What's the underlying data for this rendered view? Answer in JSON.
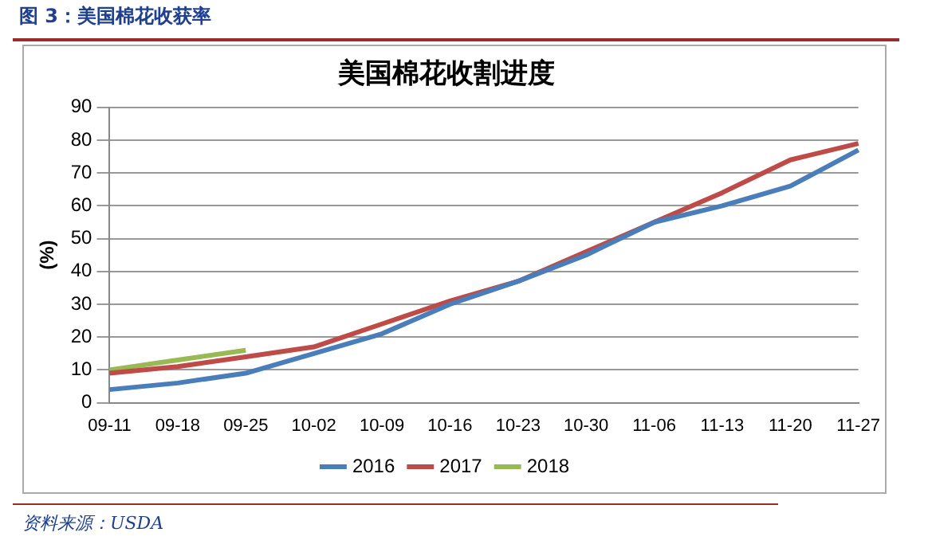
{
  "chart_data": {
    "type": "line",
    "title": "美国棉花收割进度",
    "ylabel": "(%)",
    "categories": [
      "09-11",
      "09-18",
      "09-25",
      "10-02",
      "10-09",
      "10-16",
      "10-23",
      "10-30",
      "11-06",
      "11-13",
      "11-20",
      "11-27"
    ],
    "series": [
      {
        "name": "2016",
        "color": "#4a7ebb",
        "values": [
          4,
          6,
          9,
          15,
          21,
          30,
          37,
          45,
          55,
          60,
          66,
          77
        ]
      },
      {
        "name": "2017",
        "color": "#be4b48",
        "values": [
          9,
          11,
          14,
          17,
          24,
          31,
          37,
          46,
          55,
          64,
          74,
          79
        ]
      },
      {
        "name": "2018",
        "color": "#98b954",
        "values": [
          10,
          13,
          16,
          null,
          null,
          null,
          null,
          null,
          null,
          null,
          null,
          null
        ]
      }
    ],
    "ylim": [
      0,
      90
    ],
    "yticks": [
      0,
      10,
      20,
      30,
      40,
      50,
      60,
      70,
      80,
      90
    ],
    "grid": "y",
    "legend": "bottom",
    "marker": "none",
    "line_style": "solid",
    "annotations": [
      "图 3：美国棉花收获率",
      "资料来源：USDA"
    ]
  }
}
